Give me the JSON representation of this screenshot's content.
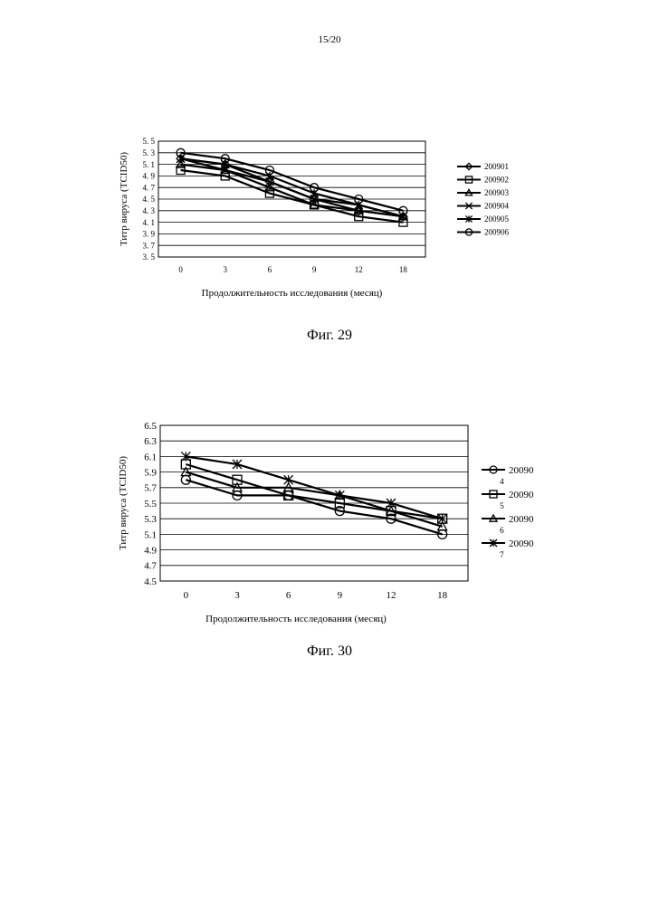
{
  "page": {
    "number": "15/20"
  },
  "figures": [
    {
      "caption": "Фиг. 29"
    },
    {
      "caption": "Фиг. 30"
    }
  ],
  "chart_data": [
    {
      "type": "line",
      "xlabel": "Продолжительность исследования  (месяц)",
      "ylabel": "Титр вируса (TCID50)",
      "categories": [
        "0",
        "3",
        "6",
        "9",
        "12",
        "18"
      ],
      "yticks": [
        "5. 5",
        "5. 3",
        "5. 1",
        "4. 9",
        "4. 7",
        "4. 5",
        "4. 3",
        "4. 1",
        "3. 9",
        "3. 7",
        "3. 5"
      ],
      "ylim": [
        3.5,
        5.5
      ],
      "grid": true,
      "legend": "right",
      "series": [
        {
          "name": "200901",
          "marker": "diamond",
          "values": [
            5.2,
            5.1,
            4.8,
            4.5,
            4.3,
            4.2
          ]
        },
        {
          "name": "200902",
          "marker": "square",
          "values": [
            5.0,
            4.9,
            4.6,
            4.4,
            4.2,
            4.1
          ]
        },
        {
          "name": "200903",
          "marker": "triangle",
          "values": [
            5.1,
            5.0,
            4.7,
            4.4,
            4.3,
            4.2
          ]
        },
        {
          "name": "200904",
          "marker": "x",
          "values": [
            5.2,
            5.0,
            4.8,
            4.5,
            4.4,
            4.2
          ]
        },
        {
          "name": "200905",
          "marker": "star",
          "values": [
            5.2,
            5.1,
            4.9,
            4.6,
            4.4,
            4.2
          ]
        },
        {
          "name": "200906",
          "marker": "circle",
          "values": [
            5.3,
            5.2,
            5.0,
            4.7,
            4.5,
            4.3
          ]
        }
      ]
    },
    {
      "type": "line",
      "xlabel": "Продолжительность исследования  (месяц)",
      "ylabel": "Титр вируса (TCID50)",
      "categories": [
        "0",
        "3",
        "6",
        "9",
        "12",
        "18"
      ],
      "yticks": [
        "6.5",
        "6.3",
        "6.1",
        "5.9",
        "5.7",
        "5.5",
        "5.3",
        "5.1",
        "4.9",
        "4.7",
        "4.5"
      ],
      "ylim": [
        4.5,
        6.5
      ],
      "grid": true,
      "legend": "right",
      "series": [
        {
          "name": "200904",
          "legend_lines": [
            "20090",
            "4"
          ],
          "marker": "circle",
          "values": [
            5.8,
            5.6,
            5.6,
            5.4,
            5.3,
            5.1
          ]
        },
        {
          "name": "200905",
          "legend_lines": [
            "20090",
            "5"
          ],
          "marker": "square",
          "values": [
            6.0,
            5.8,
            5.6,
            5.5,
            5.4,
            5.3
          ]
        },
        {
          "name": "200906",
          "legend_lines": [
            "20090",
            "6"
          ],
          "marker": "triangle",
          "values": [
            5.9,
            5.7,
            5.7,
            5.6,
            5.4,
            5.2
          ]
        },
        {
          "name": "200907",
          "legend_lines": [
            "20090",
            "7"
          ],
          "marker": "star",
          "values": [
            6.1,
            6.0,
            5.8,
            5.6,
            5.5,
            5.3
          ]
        }
      ]
    }
  ]
}
